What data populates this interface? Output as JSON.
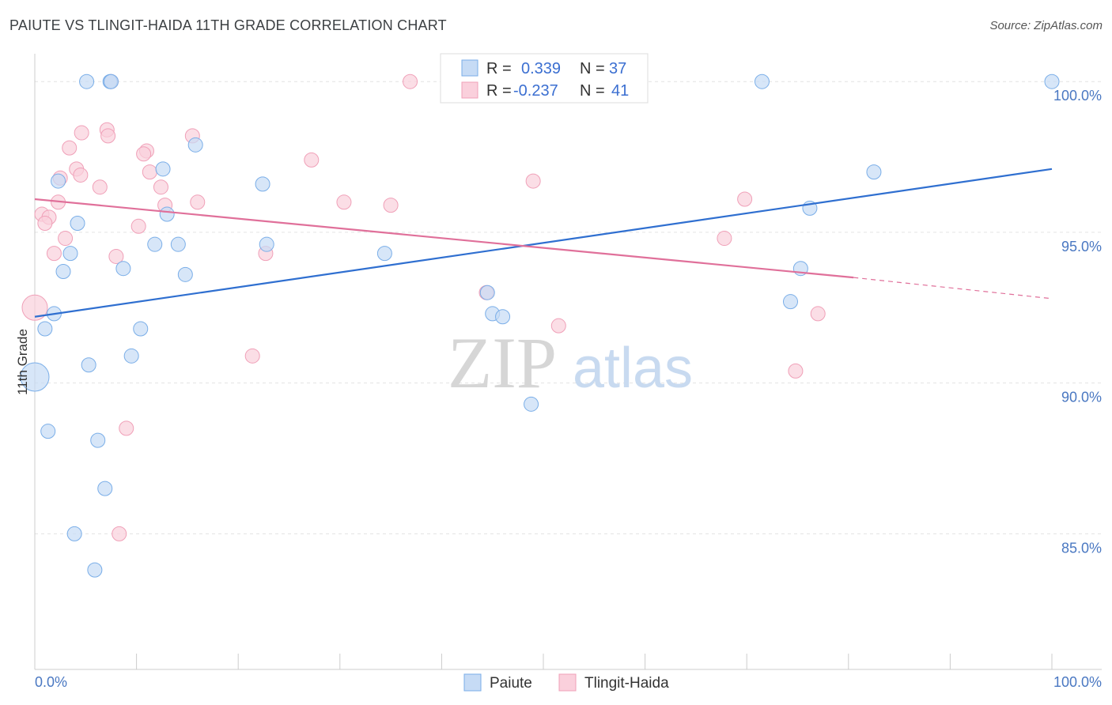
{
  "header": {
    "title": "PAIUTE VS TLINGIT-HAIDA 11TH GRADE CORRELATION CHART",
    "source": "Source: ZipAtlas.com"
  },
  "chart_data": {
    "type": "scatter",
    "ylabel": "11th Grade",
    "xlim": [
      0,
      100
    ],
    "ylim": [
      80.5,
      101.5
    ],
    "x_tick_labels": [
      "0.0%",
      "100.0%"
    ],
    "y_ticks": [
      {
        "value": 100,
        "label": "100.0%"
      },
      {
        "value": 95,
        "label": "95.0%"
      },
      {
        "value": 90,
        "label": "90.0%"
      },
      {
        "value": 85,
        "label": "85.0%"
      }
    ],
    "legend": {
      "r_label": "R =",
      "n_label": "N =",
      "entries": [
        {
          "r": "0.339",
          "n": "37"
        },
        {
          "r": "-0.237",
          "n": "41"
        }
      ]
    },
    "watermark": {
      "zip": "ZIP",
      "atlas": "atlas"
    },
    "series": [
      {
        "name": "Paiute",
        "color": "#7aaee8",
        "fill": "#c6dbf5",
        "line_color": "#2f6fd0",
        "trend": {
          "x": [
            0,
            100
          ],
          "y": [
            92.2,
            97.1
          ]
        },
        "points": [
          [
            5.1,
            100
          ],
          [
            7.4,
            100
          ],
          [
            7.5,
            100
          ],
          [
            71.5,
            100
          ],
          [
            100,
            100
          ],
          [
            15.8,
            97.9
          ],
          [
            12.6,
            97.1
          ],
          [
            82.5,
            97.0
          ],
          [
            2.3,
            96.7
          ],
          [
            22.4,
            96.6
          ],
          [
            76.2,
            95.8
          ],
          [
            13.0,
            95.6
          ],
          [
            4.2,
            95.3
          ],
          [
            11.8,
            94.6
          ],
          [
            14.1,
            94.6
          ],
          [
            22.8,
            94.6
          ],
          [
            3.5,
            94.3
          ],
          [
            34.4,
            94.3
          ],
          [
            8.7,
            93.8
          ],
          [
            75.3,
            93.8
          ],
          [
            2.8,
            93.7
          ],
          [
            14.8,
            93.6
          ],
          [
            44.5,
            93.0
          ],
          [
            74.3,
            92.7
          ],
          [
            1.9,
            92.3
          ],
          [
            45.0,
            92.3
          ],
          [
            46.0,
            92.2
          ],
          [
            1.0,
            91.8
          ],
          [
            10.4,
            91.8
          ],
          [
            9.5,
            90.9
          ],
          [
            5.3,
            90.6
          ],
          [
            0.0,
            90.2
          ],
          [
            48.8,
            89.3
          ],
          [
            1.3,
            88.4
          ],
          [
            6.2,
            88.1
          ],
          [
            6.9,
            86.5
          ],
          [
            3.9,
            85.0
          ],
          [
            5.9,
            83.8
          ]
        ],
        "sizes": [
          9,
          9,
          9,
          9,
          9,
          9,
          9,
          9,
          9,
          9,
          9,
          9,
          9,
          9,
          9,
          9,
          9,
          9,
          9,
          9,
          9,
          9,
          9,
          9,
          9,
          9,
          9,
          9,
          9,
          9,
          9,
          18,
          9,
          9,
          9,
          9,
          9,
          9
        ]
      },
      {
        "name": "Tlingit-Haida",
        "color": "#f0a0b8",
        "fill": "#fad0dc",
        "line_color": "#e0709a",
        "trend": {
          "x": [
            0,
            80.5
          ],
          "y": [
            96.1,
            93.5
          ]
        },
        "trend_dashed": {
          "x": [
            80.5,
            100
          ],
          "y": [
            93.5,
            92.8
          ]
        },
        "points": [
          [
            7.5,
            100
          ],
          [
            36.9,
            100
          ],
          [
            7.1,
            98.4
          ],
          [
            4.6,
            98.3
          ],
          [
            7.2,
            98.2
          ],
          [
            15.5,
            98.2
          ],
          [
            3.4,
            97.8
          ],
          [
            11.0,
            97.7
          ],
          [
            10.7,
            97.6
          ],
          [
            27.2,
            97.4
          ],
          [
            4.1,
            97.1
          ],
          [
            11.3,
            97.0
          ],
          [
            4.5,
            96.9
          ],
          [
            2.5,
            96.8
          ],
          [
            49.0,
            96.7
          ],
          [
            6.4,
            96.5
          ],
          [
            12.4,
            96.5
          ],
          [
            69.8,
            96.1
          ],
          [
            16.0,
            96.0
          ],
          [
            2.3,
            96.0
          ],
          [
            30.4,
            96.0
          ],
          [
            12.8,
            95.9
          ],
          [
            35.0,
            95.9
          ],
          [
            0.7,
            95.6
          ],
          [
            1.4,
            95.5
          ],
          [
            1.0,
            95.3
          ],
          [
            10.2,
            95.2
          ],
          [
            3.0,
            94.8
          ],
          [
            67.8,
            94.8
          ],
          [
            1.9,
            94.3
          ],
          [
            22.7,
            94.3
          ],
          [
            8.0,
            94.2
          ],
          [
            44.4,
            93.0
          ],
          [
            0.0,
            92.5
          ],
          [
            77.0,
            92.3
          ],
          [
            51.5,
            91.9
          ],
          [
            21.4,
            90.9
          ],
          [
            74.8,
            90.4
          ],
          [
            9.0,
            88.5
          ],
          [
            8.3,
            85.0
          ]
        ],
        "sizes": [
          9,
          9,
          9,
          9,
          9,
          9,
          9,
          9,
          9,
          9,
          9,
          9,
          9,
          9,
          9,
          9,
          9,
          9,
          9,
          9,
          9,
          9,
          9,
          9,
          9,
          9,
          9,
          9,
          9,
          9,
          9,
          9,
          9,
          16,
          9,
          9,
          9,
          9,
          9,
          9
        ]
      }
    ]
  }
}
